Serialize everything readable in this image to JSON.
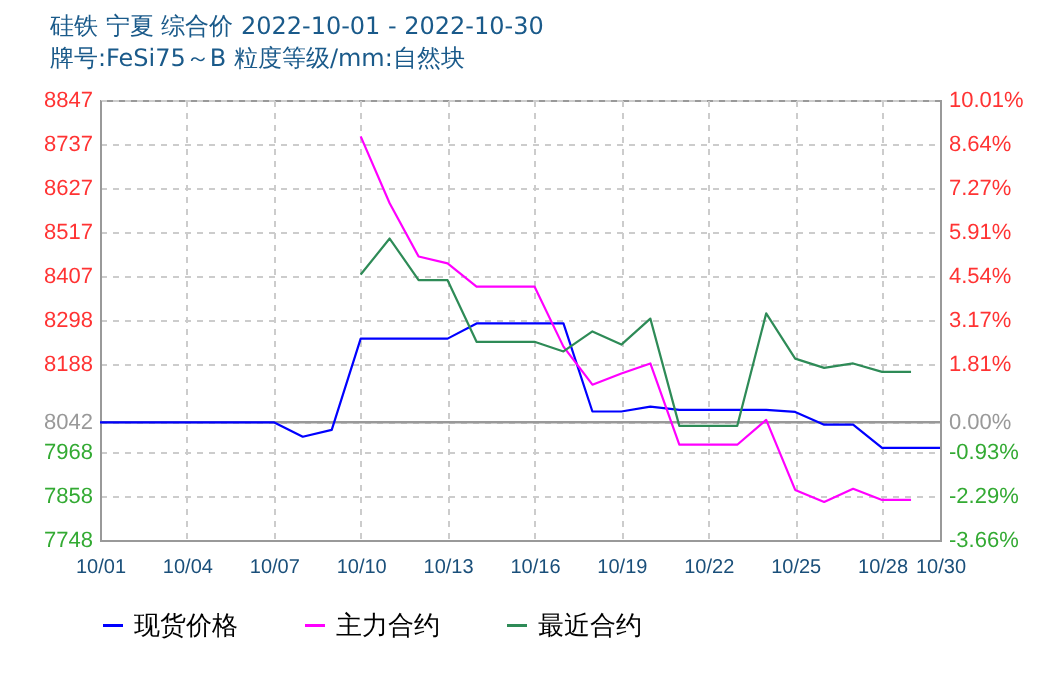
{
  "chart_data": {
    "type": "line",
    "title": "硅铁 宁夏 综合价 2022-10-01 - 2022-10-30",
    "subtitle": "牌号:FeSi75～B 粒度等级/mm:自然块",
    "xlim": [
      "2022-10-01",
      "2022-10-30"
    ],
    "xticks": [
      {
        "value": "2022-10-01",
        "label": "10/01"
      },
      {
        "value": "2022-10-04",
        "label": "10/04"
      },
      {
        "value": "2022-10-07",
        "label": "10/07"
      },
      {
        "value": "2022-10-10",
        "label": "10/10"
      },
      {
        "value": "2022-10-13",
        "label": "10/13"
      },
      {
        "value": "2022-10-16",
        "label": "10/16"
      },
      {
        "value": "2022-10-19",
        "label": "10/19"
      },
      {
        "value": "2022-10-22",
        "label": "10/22"
      },
      {
        "value": "2022-10-25",
        "label": "10/25"
      },
      {
        "value": "2022-10-28",
        "label": "10/28"
      },
      {
        "value": "2022-10-30",
        "label": "10/30"
      }
    ],
    "ylim": [
      7748,
      8847
    ],
    "yticks": [
      7748,
      7858,
      7968,
      8042,
      8188,
      8298,
      8407,
      8517,
      8627,
      8737,
      8847
    ],
    "y2lim": [
      -3.66,
      10.01
    ],
    "y2ticks": [
      {
        "value": -3.66,
        "label": "-3.66%"
      },
      {
        "value": -2.29,
        "label": "-2.29%"
      },
      {
        "value": -0.93,
        "label": "-0.93%"
      },
      {
        "value": 0,
        "label": "0.00%"
      },
      {
        "value": 1.81,
        "label": "1.81%"
      },
      {
        "value": 3.17,
        "label": "3.17%"
      },
      {
        "value": 4.54,
        "label": "4.54%"
      },
      {
        "value": 5.91,
        "label": "5.91%"
      },
      {
        "value": 7.27,
        "label": "7.27%"
      },
      {
        "value": 8.64,
        "label": "8.64%"
      },
      {
        "value": 10.01,
        "label": "10.01%"
      }
    ],
    "grid": true,
    "legend": "bottom",
    "ref_lines": [
      {
        "axis": "y",
        "value": 8042,
        "color": "#999999"
      }
    ],
    "series": [
      {
        "name": "现货价格",
        "color": "#0000ff",
        "x": [
          "2022-10-01",
          "2022-10-02",
          "2022-10-03",
          "2022-10-04",
          "2022-10-05",
          "2022-10-06",
          "2022-10-07",
          "2022-10-08",
          "2022-10-09",
          "2022-10-10",
          "2022-10-11",
          "2022-10-12",
          "2022-10-13",
          "2022-10-14",
          "2022-10-15",
          "2022-10-16",
          "2022-10-17",
          "2022-10-18",
          "2022-10-19",
          "2022-10-20",
          "2022-10-21",
          "2022-10-22",
          "2022-10-23",
          "2022-10-24",
          "2022-10-25",
          "2022-10-26",
          "2022-10-27",
          "2022-10-28",
          "2022-10-29",
          "2022-10-30"
        ],
        "values": [
          8042,
          8042,
          8042,
          8042,
          8042,
          8042,
          8042,
          8006,
          8023,
          8251,
          8251,
          8251,
          8251,
          8289,
          8289,
          8289,
          8289,
          8069,
          8069,
          8081,
          8073,
          8073,
          8073,
          8073,
          8068,
          8036,
          8036,
          7978,
          7978,
          7978
        ]
      },
      {
        "name": "主力合约",
        "color": "#ff00ff",
        "x": [
          "2022-10-10",
          "2022-10-11",
          "2022-10-12",
          "2022-10-13",
          "2022-10-14",
          "2022-10-15",
          "2022-10-16",
          "2022-10-17",
          "2022-10-18",
          "2022-10-19",
          "2022-10-20",
          "2022-10-21",
          "2022-10-22",
          "2022-10-23",
          "2022-10-24",
          "2022-10-25",
          "2022-10-26",
          "2022-10-27",
          "2022-10-28",
          "2022-10-29"
        ],
        "values": [
          8756,
          8589,
          8456,
          8439,
          8381,
          8381,
          8381,
          8231,
          8136,
          8164,
          8189,
          7986,
          7986,
          7986,
          8048,
          7873,
          7843,
          7876,
          7848,
          7848
        ]
      },
      {
        "name": "最近合约",
        "color": "#2e8b57",
        "x": [
          "2022-10-10",
          "2022-10-11",
          "2022-10-12",
          "2022-10-13",
          "2022-10-14",
          "2022-10-15",
          "2022-10-16",
          "2022-10-17",
          "2022-10-18",
          "2022-10-19",
          "2022-10-20",
          "2022-10-21",
          "2022-10-22",
          "2022-10-23",
          "2022-10-24",
          "2022-10-25",
          "2022-10-26",
          "2022-10-27",
          "2022-10-28",
          "2022-10-29"
        ],
        "values": [
          8411,
          8501,
          8397,
          8397,
          8243,
          8243,
          8243,
          8219,
          8269,
          8236,
          8301,
          8033,
          8033,
          8033,
          8314,
          8201,
          8178,
          8189,
          8168,
          8168
        ]
      }
    ]
  }
}
